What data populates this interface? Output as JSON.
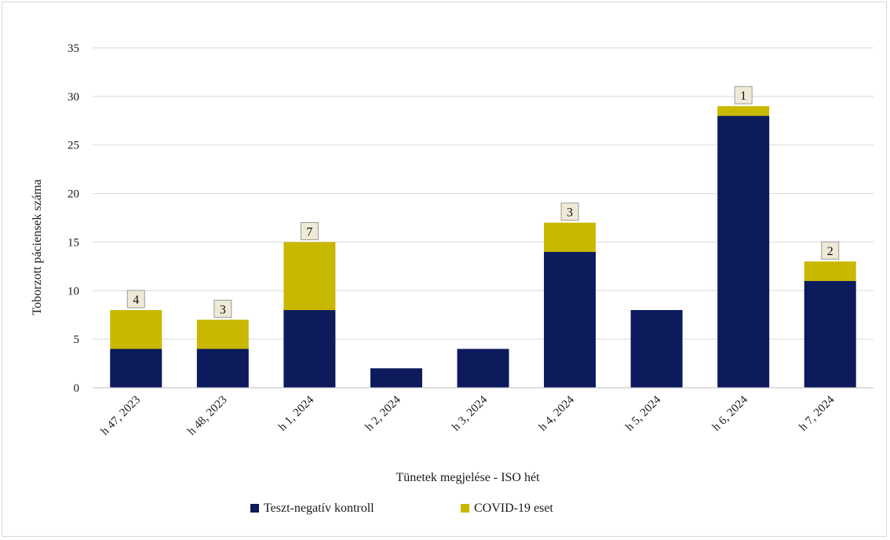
{
  "chart_data": {
    "type": "bar",
    "stacked": true,
    "categories": [
      "h 47, 2023",
      "h 48, 2023",
      "h 1, 2024",
      "h 2, 2024",
      "h 3, 2024",
      "h 4, 2024",
      "h 5, 2024",
      "h 6, 2024",
      "h 7, 2024"
    ],
    "series": [
      {
        "name": "Teszt-negatív kontroll",
        "values": [
          4,
          4,
          8,
          2,
          4,
          14,
          8,
          28,
          11
        ],
        "color": "#0d1a5c"
      },
      {
        "name": "COVID-19 eset",
        "values": [
          4,
          3,
          7,
          0,
          0,
          3,
          0,
          1,
          2
        ],
        "color": "#c9b800"
      }
    ],
    "data_labels": [
      "4",
      "3",
      "7",
      "",
      "",
      "3",
      "",
      "1",
      "2"
    ],
    "xlabel": "Tünetek megjelése - ISO hét",
    "ylabel": "Toborzott páciensek száma",
    "ylim": [
      0,
      35
    ],
    "yticks": [
      "0",
      "5",
      "10",
      "15",
      "20",
      "25",
      "30",
      "35"
    ],
    "grid": true,
    "legend_position": "bottom"
  }
}
